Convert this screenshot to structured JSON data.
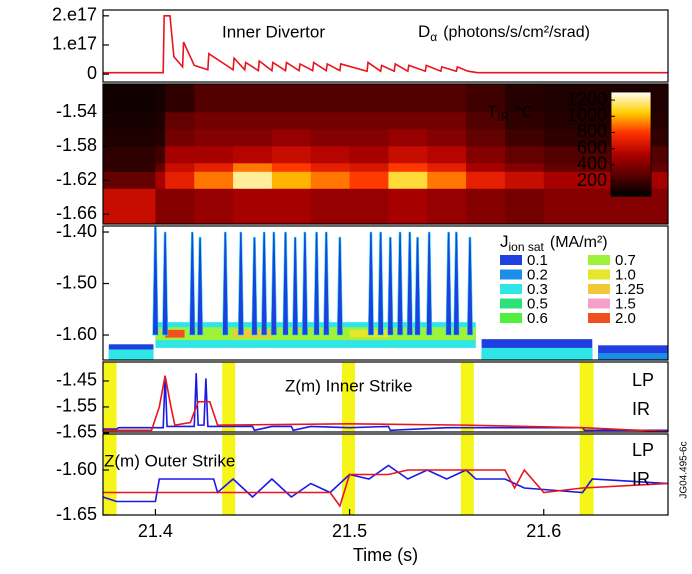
{
  "chart_data": [
    {
      "type": "line",
      "xlim": [
        21.373,
        21.664
      ],
      "ylim": [
        -2.7e+16,
        2.2e+17
      ],
      "yticks": [
        0,
        {
          "value": 1e+17,
          "label": "1.e17"
        },
        {
          "value": 2e+17,
          "label": "2.e17"
        }
      ],
      "title": "Inner Divertor",
      "quantity": {
        "symbol": "D",
        "subscript": "α",
        "unit": "(photons/s/cm²/srad)"
      },
      "series": [
        {
          "color": "#e8141e",
          "x": [
            21.373,
            21.404,
            21.4045,
            21.4075,
            21.4095,
            21.414,
            21.4145,
            21.42,
            21.427,
            21.4275,
            21.44,
            21.4405,
            21.446,
            21.4465,
            21.453,
            21.4535,
            21.46,
            21.4605,
            21.467,
            21.4675,
            21.474,
            21.4745,
            21.481,
            21.4815,
            21.488,
            21.4885,
            21.495,
            21.4955,
            21.509,
            21.5095,
            21.516,
            21.5165,
            21.523,
            21.5235,
            21.53,
            21.5305,
            21.539,
            21.5395,
            21.547,
            21.5475,
            21.555,
            21.5555,
            21.561,
            21.566,
            21.664
          ],
          "values": [
            5000000000000000.0,
            5000000000000000.0,
            2e+17,
            2e+17,
            6e+16,
            2.5e+16,
            1.1e+17,
            3e+16,
            1.5e+16,
            7e+16,
            1.5e+16,
            5.5e+16,
            1.5e+16,
            4e+16,
            1.2e+16,
            4.5e+16,
            1.2e+16,
            4e+16,
            1.2e+16,
            4e+16,
            1.2e+16,
            3.5e+16,
            1.2e+16,
            4e+16,
            1.2e+16,
            3.5e+16,
            1.2e+16,
            3.5e+16,
            1e+16,
            4e+16,
            1e+16,
            3e+16,
            1e+16,
            3.5e+16,
            1e+16,
            3e+16,
            1e+16,
            3e+16,
            1e+16,
            2.5e+16,
            1e+16,
            2.5e+16,
            1e+16,
            5000000000000000.0,
            5000000000000000.0
          ]
        }
      ]
    },
    {
      "type": "heatmap",
      "xlim": [
        21.373,
        21.664
      ],
      "ylim": [
        -1.6715,
        -1.5066
      ],
      "yticks": [
        -1.54,
        -1.58,
        -1.62,
        -1.66
      ],
      "quantity": {
        "symbol": "T",
        "subscript": "IR",
        "unit": "°C"
      },
      "x_edges": [
        21.373,
        21.4,
        21.405,
        21.42,
        21.44,
        21.46,
        21.48,
        21.5,
        21.52,
        21.54,
        21.56,
        21.58,
        21.6,
        21.63,
        21.664
      ],
      "y_edges": [
        -1.5066,
        -1.54,
        -1.56,
        -1.58,
        -1.6,
        -1.61,
        -1.63,
        -1.6715
      ],
      "values": [
        [
          60,
          80,
          150,
          250,
          250,
          250,
          250,
          250,
          250,
          250,
          200,
          120,
          100,
          100
        ],
        [
          80,
          100,
          300,
          350,
          350,
          350,
          350,
          350,
          350,
          350,
          250,
          150,
          120,
          120
        ],
        [
          100,
          120,
          350,
          400,
          400,
          450,
          400,
          400,
          450,
          400,
          300,
          200,
          150,
          150
        ],
        [
          150,
          200,
          500,
          500,
          550,
          600,
          550,
          500,
          600,
          550,
          400,
          300,
          250,
          250
        ],
        [
          150,
          300,
          600,
          700,
          900,
          800,
          700,
          650,
          800,
          700,
          500,
          400,
          300,
          300
        ],
        [
          300,
          500,
          700,
          900,
          1200,
          1000,
          900,
          800,
          1100,
          900,
          700,
          600,
          500,
          500
        ],
        [
          600,
          400,
          400,
          450,
          500,
          500,
          450,
          450,
          500,
          450,
          400,
          350,
          400,
          400
        ]
      ],
      "clim": [
        15,
        1300
      ],
      "colormap": [
        "#000000",
        "#5a0000",
        "#b00000",
        "#ff3000",
        "#ffd000",
        "#ffffff"
      ],
      "colorbar_ticks": [
        200,
        400,
        600,
        800,
        1000,
        1200
      ]
    },
    {
      "type": "contour",
      "xlim": [
        21.373,
        21.664
      ],
      "ylim": [
        -1.6485,
        -1.3883
      ],
      "yticks": [
        {
          "value": -1.4,
          "label": "-1.40"
        },
        {
          "value": -1.5,
          "label": "-1.50"
        },
        {
          "value": -1.6,
          "label": "-1.60"
        }
      ],
      "quantity": {
        "symbol": "J",
        "subscript": "ion sat",
        "unit": "(MA/m²)"
      },
      "levels": [
        0.1,
        0.2,
        0.3,
        0.5,
        0.6,
        0.7,
        {
          "value": 1.0,
          "label": "1.0"
        },
        1.25,
        1.5,
        {
          "value": 2.0,
          "label": "2.0"
        }
      ],
      "level_colors": [
        "#1f3fe0",
        "#1c8ee8",
        "#2ee6e6",
        "#2de07a",
        "#4ff03c",
        "#9ff23a",
        "#e6e62a",
        "#f0c838",
        "#f4a0c8",
        "#f05020"
      ],
      "blocks": [
        {
          "x": [
            21.376,
            21.399
          ],
          "z": [
            -1.6485,
            -1.618
          ],
          "level": 0.1
        },
        {
          "x": [
            21.376,
            21.399
          ],
          "z": [
            -1.6485,
            -1.628
          ],
          "level": 0.3
        },
        {
          "x": [
            21.4,
            21.565
          ],
          "z": [
            -1.625,
            -1.575
          ],
          "level": 0.3
        },
        {
          "x": [
            21.4,
            21.565
          ],
          "z": [
            -1.61,
            -1.585
          ],
          "level": 0.7
        },
        {
          "x": [
            21.405,
            21.415
          ],
          "z": [
            -1.605,
            -1.59
          ],
          "level": 2.0
        },
        {
          "x": [
            21.44,
            21.46
          ],
          "z": [
            -1.605,
            -1.59
          ],
          "level": 1.25
        },
        {
          "x": [
            21.5,
            21.52
          ],
          "z": [
            -1.605,
            -1.59
          ],
          "level": 1.0
        },
        {
          "x": [
            21.568,
            21.625
          ],
          "z": [
            -1.6485,
            -1.608
          ],
          "level": 0.1
        },
        {
          "x": [
            21.568,
            21.625
          ],
          "z": [
            -1.6485,
            -1.625
          ],
          "level": 0.3
        },
        {
          "x": [
            21.628,
            21.664
          ],
          "z": [
            -1.6485,
            -1.62
          ],
          "level": 0.1
        },
        {
          "x": [
            21.628,
            21.664
          ],
          "z": [
            -1.6485,
            -1.635
          ],
          "level": 0.2
        }
      ],
      "spikes": {
        "x": [
          21.4,
          21.405,
          21.419,
          21.423,
          21.436,
          21.444,
          21.451,
          21.456,
          21.461,
          21.467,
          21.472,
          21.477,
          21.483,
          21.488,
          21.495,
          21.511,
          21.516,
          21.521,
          21.526,
          21.531,
          21.535,
          21.541,
          21.551,
          21.555,
          21.562
        ],
        "top": [
          -1.39,
          -1.4,
          -1.4,
          -1.41,
          -1.4,
          -1.4,
          -1.41,
          -1.4,
          -1.4,
          -1.4,
          -1.41,
          -1.4,
          -1.4,
          -1.4,
          -1.41,
          -1.4,
          -1.4,
          -1.41,
          -1.4,
          -1.4,
          -1.41,
          -1.4,
          -1.4,
          -1.4,
          -1.41
        ],
        "base": -1.6,
        "level": 0.1
      }
    },
    {
      "type": "line",
      "xlim": [
        21.373,
        21.664
      ],
      "ylim": [
        -1.6465,
        -1.377
      ],
      "yticks": [
        -1.45,
        -1.55,
        -1.65
      ],
      "title": "Z(m)  Inner Strike",
      "highlights": [
        [
          21.3733,
          21.38
        ],
        [
          21.4344,
          21.4411
        ],
        [
          21.4961,
          21.5028
        ],
        [
          21.5573,
          21.564
        ],
        [
          21.6185,
          21.6257
        ]
      ],
      "highlight_color": "#f5f51a",
      "series": [
        {
          "name": "LP",
          "color": "#1a1ae6",
          "x": [
            21.373,
            21.38,
            21.381,
            21.404,
            21.405,
            21.406,
            21.42,
            21.421,
            21.422,
            21.425,
            21.426,
            21.427,
            21.45,
            21.451,
            21.46,
            21.47,
            21.471,
            21.48,
            21.5,
            21.52,
            21.521,
            21.55,
            21.58,
            21.62,
            21.621,
            21.664
          ],
          "values": [
            -1.635,
            -1.635,
            -1.63,
            -1.63,
            -1.43,
            -1.625,
            -1.625,
            -1.42,
            -1.62,
            -1.62,
            -1.44,
            -1.625,
            -1.625,
            -1.64,
            -1.625,
            -1.625,
            -1.64,
            -1.625,
            -1.63,
            -1.625,
            -1.64,
            -1.63,
            -1.63,
            -1.63,
            -1.64,
            -1.64
          ]
        },
        {
          "name": "IR",
          "color": "#e8141e",
          "x": [
            21.373,
            21.398,
            21.402,
            21.405,
            21.408,
            21.41,
            21.418,
            21.422,
            21.428,
            21.432,
            21.5,
            21.56,
            21.62,
            21.664
          ],
          "values": [
            -1.64,
            -1.64,
            -1.55,
            -1.43,
            -1.55,
            -1.62,
            -1.61,
            -1.53,
            -1.53,
            -1.62,
            -1.615,
            -1.62,
            -1.63,
            -1.645
          ]
        }
      ]
    },
    {
      "type": "line",
      "xlim": [
        21.373,
        21.664
      ],
      "ylim": [
        -1.65,
        -1.56
      ],
      "yticks": [
        {
          "value": -1.6,
          "label": "-1.60"
        },
        -1.65
      ],
      "xticks": [
        21.4,
        21.5,
        21.6
      ],
      "xlabel": "Time (s)",
      "title": "Z(m)  Outer Strike",
      "note": "JG04.495-6c",
      "highlights": [
        [
          21.3733,
          21.38
        ],
        [
          21.4344,
          21.4411
        ],
        [
          21.4961,
          21.5028
        ],
        [
          21.5573,
          21.564
        ],
        [
          21.6185,
          21.6257
        ]
      ],
      "highlight_color": "#f5f51a",
      "series": [
        {
          "name": "LP",
          "color": "#1a1ae6",
          "x": [
            21.373,
            21.38,
            21.4,
            21.402,
            21.43,
            21.432,
            21.44,
            21.45,
            21.46,
            21.47,
            21.48,
            21.49,
            21.5,
            21.51,
            21.52,
            21.53,
            21.54,
            21.55,
            21.56,
            21.565,
            21.58,
            21.59,
            21.62,
            21.625,
            21.664
          ],
          "values": [
            -1.63,
            -1.635,
            -1.635,
            -1.61,
            -1.61,
            -1.625,
            -1.61,
            -1.63,
            -1.61,
            -1.63,
            -1.615,
            -1.625,
            -1.605,
            -1.61,
            -1.595,
            -1.61,
            -1.6,
            -1.61,
            -1.6,
            -1.61,
            -1.61,
            -1.62,
            -1.625,
            -1.61,
            -1.615
          ]
        },
        {
          "name": "IR",
          "color": "#e8141e",
          "x": [
            21.373,
            21.49,
            21.495,
            21.5,
            21.52,
            21.53,
            21.58,
            21.585,
            21.59,
            21.6,
            21.62,
            21.664
          ],
          "values": [
            -1.625,
            -1.625,
            -1.64,
            -1.605,
            -1.605,
            -1.6,
            -1.6,
            -1.62,
            -1.6,
            -1.625,
            -1.62,
            -1.615
          ]
        }
      ]
    }
  ]
}
